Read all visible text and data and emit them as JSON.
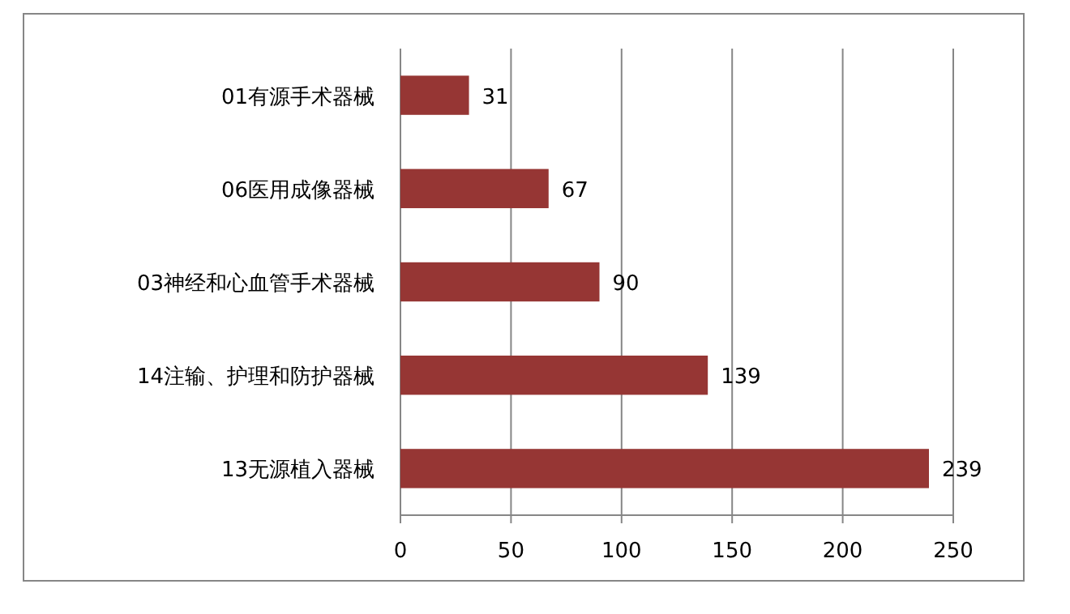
{
  "chart_data": {
    "type": "bar",
    "orientation": "horizontal",
    "categories": [
      "01有源手术器械",
      "06医用成像器械",
      "03神经和心血管手术器械",
      "14注输、护理和防护器械",
      "13无源植入器械"
    ],
    "values": [
      31,
      67,
      90,
      139,
      239
    ],
    "color": "#963634",
    "xlim": [
      0,
      250
    ],
    "xticks": [
      0,
      50,
      100,
      150,
      200,
      250
    ],
    "grid": "x",
    "data_labels": true
  }
}
